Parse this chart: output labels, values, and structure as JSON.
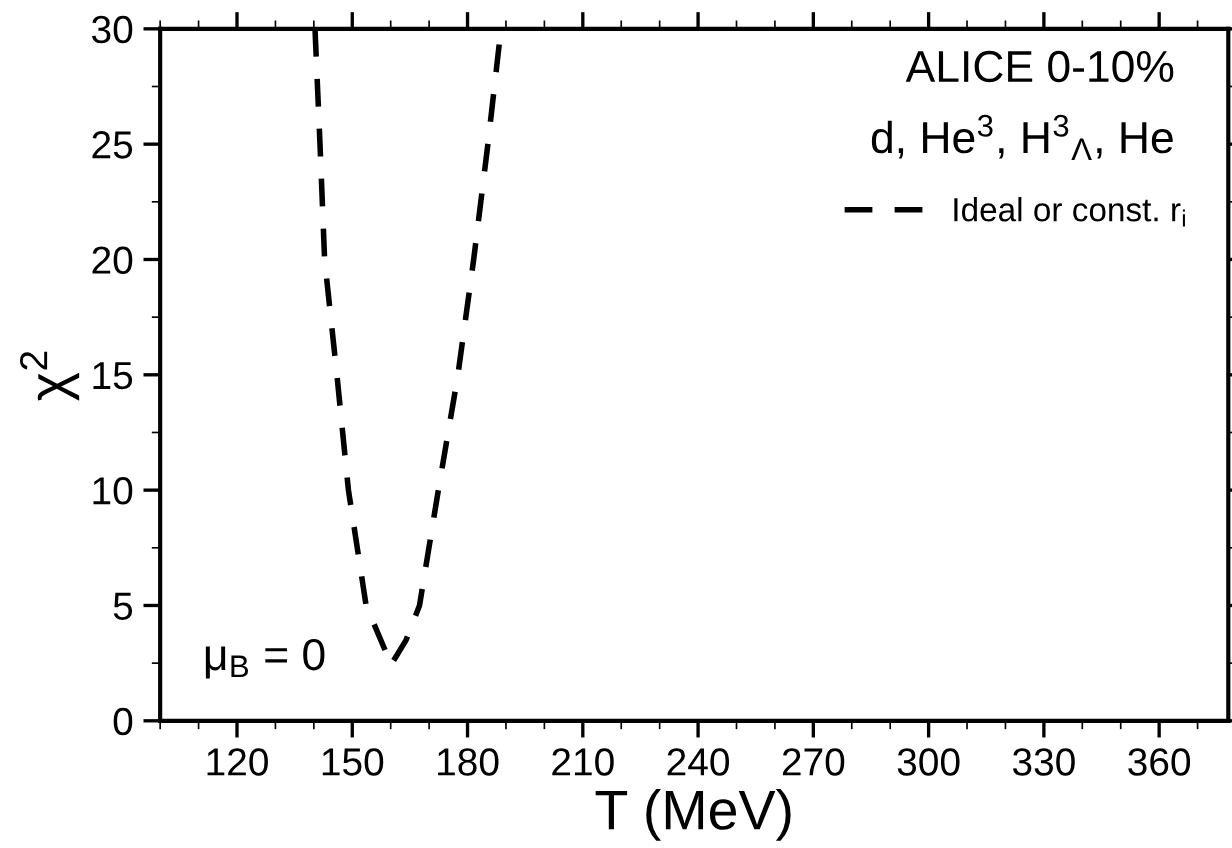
{
  "chart_data": {
    "type": "line",
    "xlabel": "T (MeV)",
    "ylabel": "χ$^{2}$",
    "xlim": [
      100,
      378
    ],
    "xticks": [
      120,
      150,
      180,
      210,
      240,
      270,
      300,
      330,
      360
    ],
    "ylim": [
      0,
      30
    ],
    "yticks": [
      0,
      5,
      10,
      15,
      20,
      25,
      30
    ],
    "series": [
      {
        "name": "Ideal or const. r$_{i}$",
        "color": "#000000",
        "line_style": "dashed",
        "x": [
          140.3,
          141.6,
          142.8,
          146,
          149,
          153.6,
          158.7,
          160,
          164,
          167.5,
          172.4,
          177.5,
          181.6,
          185.3,
          188.7
        ],
        "values": [
          30,
          25,
          20,
          15,
          10,
          5,
          3,
          2.4,
          3.5,
          5,
          10,
          15,
          20,
          25,
          30
        ]
      }
    ],
    "annotations": [
      "ALICE 0-10%",
      "d, He$^{3}$, H$^{3}$$_{Λ}$, He",
      "μ$_{B}$ = 0"
    ],
    "legend": "top right",
    "grid": false
  }
}
